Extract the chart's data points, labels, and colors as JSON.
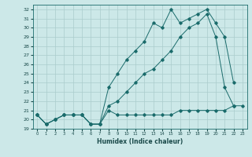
{
  "title": "",
  "xlabel": "Humidex (Indice chaleur)",
  "bg_color": "#cce8e8",
  "line_color": "#1a6b6b",
  "grid_color": "#aacccc",
  "xlim": [
    -0.5,
    23.5
  ],
  "ylim": [
    19,
    32.5
  ],
  "yticks": [
    19,
    20,
    21,
    22,
    23,
    24,
    25,
    26,
    27,
    28,
    29,
    30,
    31,
    32
  ],
  "xticks": [
    0,
    1,
    2,
    3,
    4,
    5,
    6,
    7,
    8,
    9,
    10,
    11,
    12,
    13,
    14,
    15,
    16,
    17,
    18,
    19,
    20,
    21,
    22,
    23
  ],
  "line1_x": [
    0,
    1,
    2,
    3,
    4,
    5,
    6,
    7,
    8,
    9,
    10,
    11,
    12,
    13,
    14,
    15,
    16,
    17,
    18,
    19,
    20,
    21,
    22,
    23
  ],
  "line1_y": [
    20.5,
    19.5,
    20.0,
    20.5,
    20.5,
    20.5,
    19.5,
    19.5,
    21.0,
    20.5,
    20.5,
    20.5,
    20.5,
    20.5,
    20.5,
    20.5,
    21.0,
    21.0,
    21.0,
    21.0,
    21.0,
    21.0,
    21.5,
    21.5
  ],
  "line2_x": [
    0,
    1,
    2,
    3,
    4,
    5,
    6,
    7,
    8,
    9,
    10,
    11,
    12,
    13,
    14,
    15,
    16,
    17,
    18,
    19,
    20,
    21,
    22
  ],
  "line2_y": [
    20.5,
    19.5,
    20.0,
    20.5,
    20.5,
    20.5,
    19.5,
    19.5,
    21.5,
    22.0,
    23.0,
    24.0,
    25.0,
    25.5,
    26.5,
    27.5,
    29.0,
    30.0,
    30.5,
    31.5,
    29.0,
    23.5,
    21.5
  ],
  "line3_x": [
    0,
    1,
    2,
    3,
    4,
    5,
    6,
    7,
    8,
    9,
    10,
    11,
    12,
    13,
    14,
    15,
    16,
    17,
    18,
    19,
    20,
    21,
    22
  ],
  "line3_y": [
    20.5,
    19.5,
    20.0,
    20.5,
    20.5,
    20.5,
    19.5,
    19.5,
    23.5,
    25.0,
    26.5,
    27.5,
    28.5,
    30.5,
    30.0,
    32.0,
    30.5,
    31.0,
    31.5,
    32.0,
    30.5,
    29.0,
    24.0
  ]
}
